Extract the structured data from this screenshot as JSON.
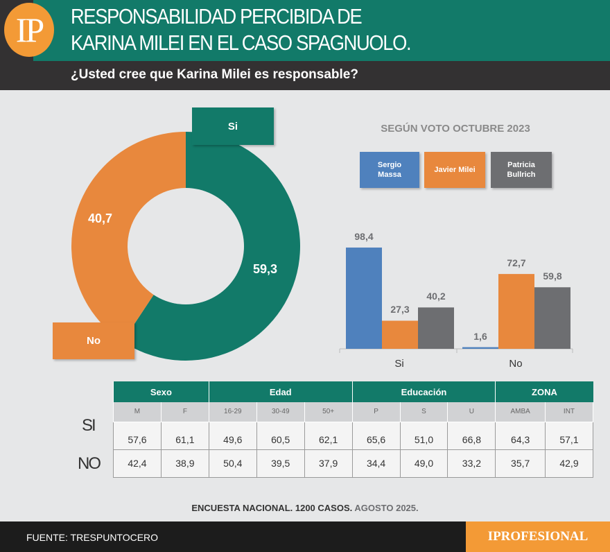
{
  "header": {
    "logo": "IP",
    "title_line1": "RESPONSABILIDAD PERCIBIDA DE",
    "title_line2": "KARINA MILEI EN EL CASO SPAGNUOLO.",
    "question": "¿Usted cree que Karina Milei es responsable?"
  },
  "colors": {
    "green": "#127a69",
    "orange": "#e8883d",
    "blue": "#4f81bd",
    "gray": "#6d6e71"
  },
  "chart_data": [
    {
      "type": "pie",
      "variant": "donut",
      "categories": [
        "Si",
        "No"
      ],
      "values": [
        59.3,
        40.7
      ],
      "value_labels": [
        "59,3",
        "40,7"
      ],
      "colors": [
        "#127a69",
        "#e8883d"
      ]
    },
    {
      "type": "bar",
      "title": "SEGÚN VOTO OCTUBRE 2023",
      "categories": [
        "Si",
        "No"
      ],
      "legend": "top",
      "series": [
        {
          "name": "Sergio Massa",
          "color": "#4f81bd",
          "values": [
            98.4,
            1.6
          ],
          "labels": [
            "98,4",
            "1,6"
          ]
        },
        {
          "name": "Javier Milei",
          "color": "#e8883d",
          "values": [
            27.3,
            72.7
          ],
          "labels": [
            "27,3",
            "72,7"
          ]
        },
        {
          "name": "Patricia Bullrich",
          "color": "#6d6e71",
          "values": [
            40.2,
            59.8
          ],
          "labels": [
            "40,2",
            "59,8"
          ]
        }
      ],
      "ylim": [
        0,
        100
      ],
      "grid": false
    },
    {
      "type": "table",
      "groups": [
        {
          "name": "Sexo",
          "span": 2
        },
        {
          "name": "Edad",
          "span": 3
        },
        {
          "name": "Educación",
          "span": 3
        },
        {
          "name": "ZONA",
          "span": 2
        }
      ],
      "columns": [
        "M",
        "F",
        "16-29",
        "30-49",
        "50+",
        "P",
        "S",
        "U",
        "AMBA",
        "INT"
      ],
      "rows": [
        {
          "label": "SI",
          "values": [
            "57,6",
            "61,1",
            "49,6",
            "60,5",
            "62,1",
            "65,6",
            "51,0",
            "66,8",
            "64,3",
            "57,1"
          ]
        },
        {
          "label": "NO",
          "values": [
            "42,4",
            "38,9",
            "50,4",
            "39,5",
            "37,9",
            "34,4",
            "49,0",
            "33,2",
            "35,7",
            "42,9"
          ]
        }
      ]
    }
  ],
  "footer": {
    "note_bold": "ENCUESTA NACIONAL. 1200 CASOS.",
    "note_date": "AGOSTO 2025.",
    "source": "FUENTE: TRESPUNTOCERO",
    "brand": "IPROFESIONAL"
  }
}
